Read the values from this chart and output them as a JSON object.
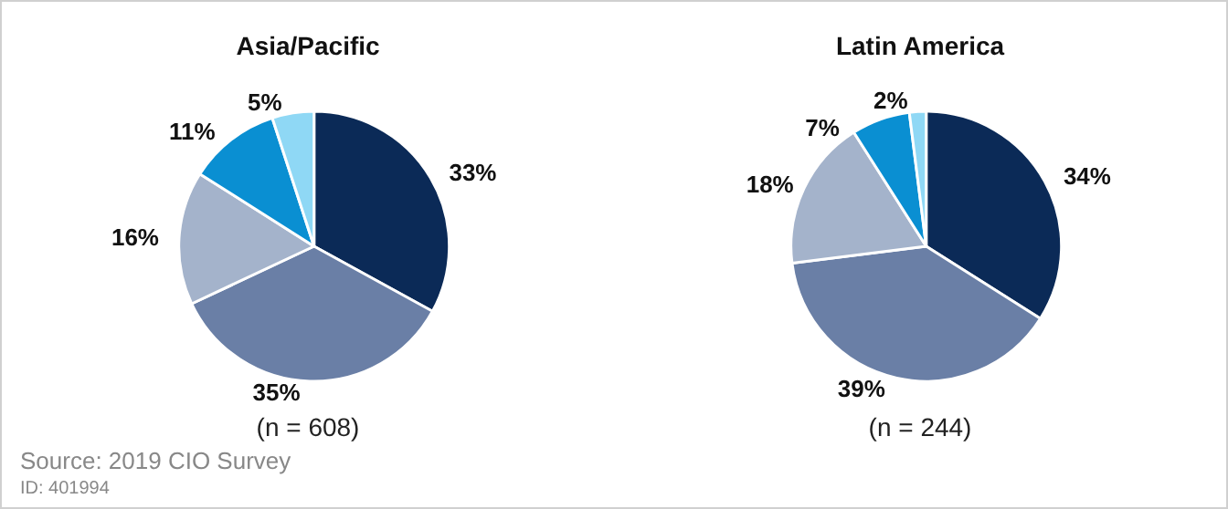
{
  "chart_data": [
    {
      "type": "pie",
      "title": "Asia/Pacific",
      "categories": [
        null,
        null,
        null,
        null,
        null
      ],
      "values": [
        33,
        35,
        16,
        11,
        5
      ],
      "value_labels": [
        "33%",
        "35%",
        "16%",
        "11%",
        "5%"
      ],
      "colors": [
        "#0b2a57",
        "#6a7fa6",
        "#a4b3cb",
        "#0a8fd2",
        "#8fd8f5"
      ],
      "annotations": [
        "(n = 608)",
        "Source: 2019 CIO Survey",
        "ID: 401994"
      ]
    },
    {
      "type": "pie",
      "title": "Latin America",
      "categories": [
        null,
        null,
        null,
        null,
        null
      ],
      "values": [
        34,
        39,
        18,
        7,
        2
      ],
      "value_labels": [
        "34%",
        "39%",
        "18%",
        "7%",
        "2%"
      ],
      "colors": [
        "#0b2a57",
        "#6a7fa6",
        "#a4b3cb",
        "#0a8fd2",
        "#8fd8f5"
      ],
      "annotations": [
        "(n = 244)"
      ]
    }
  ]
}
